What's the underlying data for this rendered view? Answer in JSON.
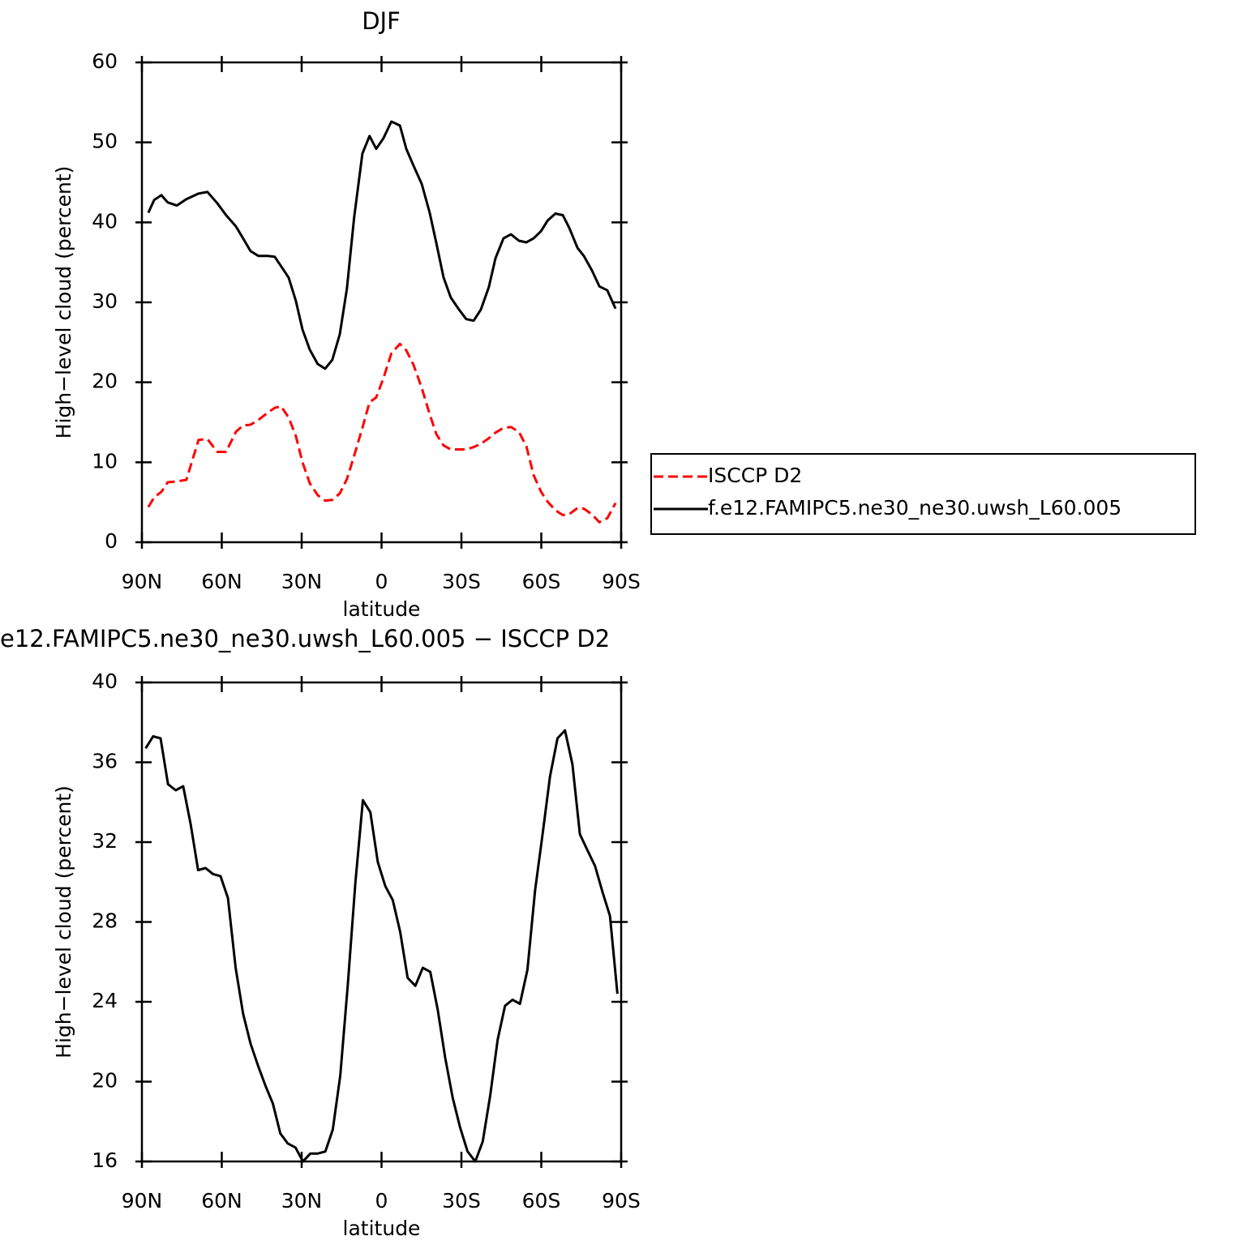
{
  "chart_data": [
    {
      "type": "line",
      "title": "DJF",
      "xlabel": "latitude",
      "ylabel": "High−level cloud (percent)",
      "x": [
        87.6,
        85.4,
        82.7,
        80.3,
        76.9,
        73.3,
        68.7,
        65.4,
        61.7,
        58.4,
        54.7,
        52.0,
        49.2,
        46.2,
        42.8,
        40.1,
        37.7,
        34.9,
        32.2,
        29.7,
        27.0,
        24.0,
        21.2,
        18.5,
        15.7,
        13.0,
        10.3,
        7.2,
        4.5,
        2.0,
        -0.7,
        -3.7,
        -6.9,
        -9.3,
        -12.0,
        -15.1,
        -18.1,
        -20.6,
        -23.3,
        -26.0,
        -29.1,
        -31.8,
        -34.6,
        -37.3,
        -40.3,
        -42.8,
        -45.8,
        -48.6,
        -51.6,
        -54.4,
        -57.1,
        -59.9,
        -62.3,
        -65.3,
        -68.1,
        -70.5,
        -73.6,
        -76.0,
        -79.0,
        -81.8,
        -84.8,
        -87.9
      ],
      "xlim": [
        90,
        -90
      ],
      "xticks": [
        {
          "value": 90,
          "label": "90N"
        },
        {
          "value": 60,
          "label": "60N"
        },
        {
          "value": 30,
          "label": "30N"
        },
        0,
        {
          "value": -30,
          "label": "30S"
        },
        {
          "value": -60,
          "label": "60S"
        },
        {
          "value": -90,
          "label": "90S"
        }
      ],
      "ylim": [
        0,
        60
      ],
      "yticks": [
        0,
        10,
        20,
        30,
        40,
        50,
        60
      ],
      "legend": "right",
      "series": [
        {
          "name": "ISCCP D2",
          "color": "#ff0000",
          "linestyle": "dashed",
          "values": [
            4.4,
            5.6,
            6.3,
            7.5,
            7.6,
            7.8,
            12.8,
            12.9,
            11.3,
            11.3,
            13.8,
            14.6,
            14.7,
            15.3,
            16.2,
            16.8,
            17.0,
            15.6,
            13.3,
            10.0,
            7.4,
            5.9,
            5.2,
            5.3,
            6.1,
            7.9,
            10.8,
            14.3,
            17.5,
            18.1,
            20.5,
            23.6,
            24.8,
            24.0,
            22.2,
            19.3,
            16.0,
            13.5,
            12.1,
            11.6,
            11.6,
            11.6,
            11.9,
            12.3,
            13.0,
            13.7,
            14.3,
            14.4,
            13.8,
            12.0,
            8.4,
            6.3,
            5.1,
            4.0,
            3.4,
            3.5,
            4.3,
            4.2,
            3.5,
            2.5,
            3.0,
            4.9
          ]
        },
        {
          "name": "f.e12.FAMIPC5.ne30_ne30.uwsh_L60.005",
          "color": "#000000",
          "linestyle": "solid",
          "values": [
            41.2,
            42.8,
            43.4,
            42.5,
            42.1,
            42.9,
            43.6,
            43.8,
            42.4,
            40.9,
            39.5,
            38,
            36.4,
            35.8,
            35.8,
            35.7,
            34.5,
            33.1,
            30.2,
            26.6,
            24.1,
            22.3,
            21.7,
            22.8,
            26,
            31.7,
            40.6,
            48.6,
            50.8,
            49.2,
            50.5,
            52.6,
            52.1,
            49.2,
            47.1,
            44.8,
            41.2,
            37.4,
            33.1,
            30.6,
            29.1,
            27.9,
            27.7,
            29.1,
            31.9,
            35.5,
            38,
            38.5,
            37.7,
            37.5,
            38,
            38.9,
            40.2,
            41.1,
            40.9,
            39.3,
            36.8,
            35.8,
            34,
            32,
            31.5,
            29.2
          ]
        }
      ]
    },
    {
      "type": "line",
      "title": "e12.FAMIPC5.ne30_ne30.uwsh_L60.005 − ISCCP D2",
      "xlabel": "latitude",
      "ylabel": "High−level cloud (percent)",
      "x": [
        88.6,
        85.8,
        83.0,
        80.2,
        77.3,
        74.5,
        71.7,
        68.9,
        66.1,
        63.3,
        60.5,
        57.7,
        54.8,
        52.0,
        49.2,
        46.4,
        43.6,
        40.8,
        38.0,
        35.2,
        32.3,
        29.5,
        26.7,
        23.9,
        21.1,
        18.3,
        15.5,
        12.7,
        9.8,
        7.0,
        4.2,
        1.4,
        -1.4,
        -4.2,
        -7.0,
        -9.8,
        -12.7,
        -15.5,
        -18.3,
        -21.1,
        -23.9,
        -26.7,
        -29.5,
        -32.3,
        -35.2,
        -38.0,
        -40.8,
        -43.6,
        -46.4,
        -49.2,
        -52.0,
        -54.8,
        -57.7,
        -60.5,
        -63.3,
        -66.1,
        -68.9,
        -71.7,
        -74.5,
        -77.3,
        -80.2,
        -83.0,
        -85.8,
        -88.6
      ],
      "xlim": [
        90,
        -90
      ],
      "xticks": [
        {
          "value": 90,
          "label": "90N"
        },
        {
          "value": 60,
          "label": "60N"
        },
        {
          "value": 30,
          "label": "30N"
        },
        0,
        {
          "value": -30,
          "label": "30S"
        },
        {
          "value": -60,
          "label": "60S"
        },
        {
          "value": -90,
          "label": "90S"
        }
      ],
      "ylim": [
        16,
        40
      ],
      "yticks": [
        16,
        20,
        24,
        28,
        32,
        36,
        40
      ],
      "series": [
        {
          "color": "#000000",
          "linestyle": "solid",
          "values": [
            36.7,
            37.3,
            37.2,
            34.9,
            34.6,
            34.8,
            32.9,
            30.6,
            30.7,
            30.4,
            30.3,
            29.2,
            25.7,
            23.4,
            21.9,
            20.8,
            19.8,
            18.9,
            17.4,
            16.9,
            16.7,
            16.0,
            16.4,
            16.4,
            16.5,
            17.6,
            20.3,
            24.8,
            30.0,
            34.1,
            33.5,
            31.0,
            29.8,
            29.1,
            27.5,
            25.2,
            24.8,
            25.7,
            25.5,
            23.6,
            21.2,
            19.2,
            17.7,
            16.5,
            16.0,
            17.0,
            19.3,
            22.1,
            23.8,
            24.1,
            23.9,
            25.6,
            29.6,
            32.4,
            35.3,
            37.2,
            37.6,
            35.9,
            32.4,
            31.6,
            30.8,
            29.5,
            28.3,
            24.4
          ]
        }
      ]
    }
  ]
}
